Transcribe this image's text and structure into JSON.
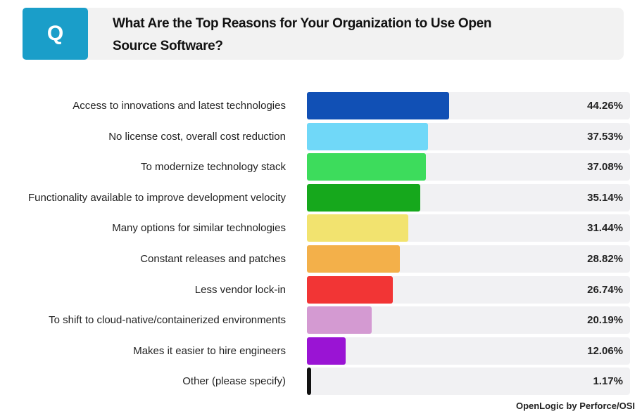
{
  "header": {
    "badge": "Q",
    "title": "What Are the Top Reasons for Your Organization to Use Open Source Software?"
  },
  "source": "OpenLogic by Perforce/OSI",
  "chart_data": {
    "type": "bar",
    "orientation": "horizontal",
    "title": "What Are the Top Reasons for Your Organization to Use Open Source Software?",
    "xlim": [
      0,
      100
    ],
    "grid": false,
    "categories": [
      "Access to innovations and latest technologies",
      "No license cost, overall cost reduction",
      "To modernize technology stack",
      "Functionality available to improve development velocity",
      "Many options for similar technologies",
      "Constant releases and patches",
      "Less vendor lock-in",
      "To shift to cloud-native/containerized environments",
      "Makes it easier to hire engineers",
      "Other (please specify)"
    ],
    "values": [
      44.26,
      37.53,
      37.08,
      35.14,
      31.44,
      28.82,
      26.74,
      20.19,
      12.06,
      1.17
    ],
    "value_labels": [
      "44.26%",
      "37.53%",
      "37.08%",
      "35.14%",
      "31.44%",
      "28.82%",
      "26.74%",
      "20.19%",
      "12.06%",
      "1.17%"
    ],
    "colors": [
      "#1150b5",
      "#70d8f8",
      "#3ddc5c",
      "#16a81c",
      "#f2e36f",
      "#f3b04a",
      "#f23535",
      "#d49ad2",
      "#9a14d4",
      "#111111"
    ]
  }
}
